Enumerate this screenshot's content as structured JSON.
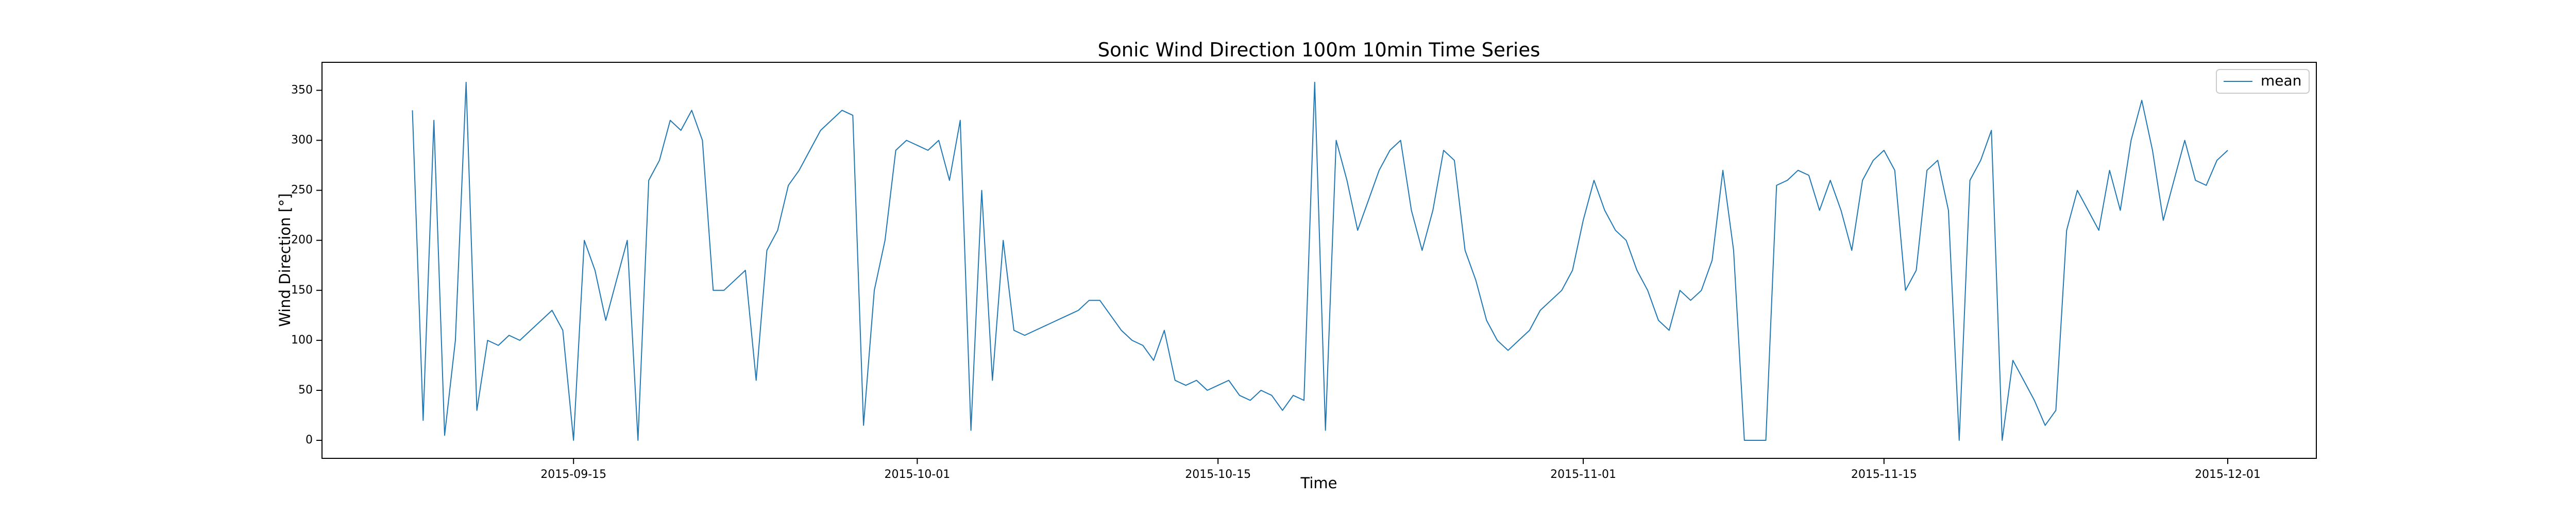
{
  "chart_data": {
    "type": "line",
    "title": "Sonic Wind Direction 100m 10min Time Series",
    "xlabel": "Time",
    "ylabel": "Wind Direction [°]",
    "x": [
      "2015-09-07 12:00",
      "2015-09-08 00:00",
      "2015-09-08 12:00",
      "2015-09-09 00:00",
      "2015-09-09 12:00",
      "2015-09-10 00:00",
      "2015-09-10 12:00",
      "2015-09-11 00:00",
      "2015-09-11 12:00",
      "2015-09-12 00:00",
      "2015-09-12 12:00",
      "2015-09-13 00:00",
      "2015-09-13 12:00",
      "2015-09-14 00:00",
      "2015-09-14 12:00",
      "2015-09-15 00:00",
      "2015-09-15 12:00",
      "2015-09-16 00:00",
      "2015-09-16 12:00",
      "2015-09-17 00:00",
      "2015-09-17 12:00",
      "2015-09-18 00:00",
      "2015-09-18 12:00",
      "2015-09-19 00:00",
      "2015-09-19 12:00",
      "2015-09-20 00:00",
      "2015-09-20 12:00",
      "2015-09-21 00:00",
      "2015-09-21 12:00",
      "2015-09-22 00:00",
      "2015-09-22 12:00",
      "2015-09-23 00:00",
      "2015-09-23 12:00",
      "2015-09-24 00:00",
      "2015-09-24 12:00",
      "2015-09-25 00:00",
      "2015-09-25 12:00",
      "2015-09-26 00:00",
      "2015-09-26 12:00",
      "2015-09-27 00:00",
      "2015-09-27 12:00",
      "2015-09-28 00:00",
      "2015-09-28 12:00",
      "2015-09-29 00:00",
      "2015-09-29 12:00",
      "2015-09-30 00:00",
      "2015-09-30 12:00",
      "2015-10-01 00:00",
      "2015-10-01 12:00",
      "2015-10-02 00:00",
      "2015-10-02 12:00",
      "2015-10-03 00:00",
      "2015-10-03 12:00",
      "2015-10-04 00:00",
      "2015-10-04 12:00",
      "2015-10-05 00:00",
      "2015-10-05 12:00",
      "2015-10-06 00:00",
      "2015-10-06 12:00",
      "2015-10-07 00:00",
      "2015-10-07 12:00",
      "2015-10-08 00:00",
      "2015-10-08 12:00",
      "2015-10-09 00:00",
      "2015-10-09 12:00",
      "2015-10-10 00:00",
      "2015-10-10 12:00",
      "2015-10-11 00:00",
      "2015-10-11 12:00",
      "2015-10-12 00:00",
      "2015-10-12 12:00",
      "2015-10-13 00:00",
      "2015-10-13 12:00",
      "2015-10-14 00:00",
      "2015-10-14 12:00",
      "2015-10-15 00:00",
      "2015-10-15 12:00",
      "2015-10-16 00:00",
      "2015-10-16 12:00",
      "2015-10-17 00:00",
      "2015-10-17 12:00",
      "2015-10-18 00:00",
      "2015-10-18 12:00",
      "2015-10-19 00:00",
      "2015-10-19 12:00",
      "2015-10-20 00:00",
      "2015-10-20 12:00",
      "2015-10-21 00:00",
      "2015-10-21 12:00",
      "2015-10-22 00:00",
      "2015-10-22 12:00",
      "2015-10-23 00:00",
      "2015-10-23 12:00",
      "2015-10-24 00:00",
      "2015-10-24 12:00",
      "2015-10-25 00:00",
      "2015-10-25 12:00",
      "2015-10-26 00:00",
      "2015-10-26 12:00",
      "2015-10-27 00:00",
      "2015-10-27 12:00",
      "2015-10-28 00:00",
      "2015-10-28 12:00",
      "2015-10-29 00:00",
      "2015-10-29 12:00",
      "2015-10-30 00:00",
      "2015-10-30 12:00",
      "2015-10-31 00:00",
      "2015-10-31 12:00",
      "2015-11-01 00:00",
      "2015-11-01 12:00",
      "2015-11-02 00:00",
      "2015-11-02 12:00",
      "2015-11-03 00:00",
      "2015-11-03 12:00",
      "2015-11-04 00:00",
      "2015-11-04 12:00",
      "2015-11-05 00:00",
      "2015-11-05 12:00",
      "2015-11-06 00:00",
      "2015-11-06 12:00",
      "2015-11-07 00:00",
      "2015-11-07 12:00",
      "2015-11-08 00:00",
      "2015-11-08 12:00",
      "2015-11-09 00:00",
      "2015-11-09 12:00",
      "2015-11-10 00:00",
      "2015-11-10 12:00",
      "2015-11-11 00:00",
      "2015-11-11 12:00",
      "2015-11-12 00:00",
      "2015-11-12 12:00",
      "2015-11-13 00:00",
      "2015-11-13 12:00",
      "2015-11-14 00:00",
      "2015-11-14 12:00",
      "2015-11-15 00:00",
      "2015-11-15 12:00",
      "2015-11-16 00:00",
      "2015-11-16 12:00",
      "2015-11-17 00:00",
      "2015-11-17 12:00",
      "2015-11-18 00:00",
      "2015-11-18 12:00",
      "2015-11-19 00:00",
      "2015-11-19 12:00",
      "2015-11-20 00:00",
      "2015-11-20 12:00",
      "2015-11-21 00:00",
      "2015-11-21 12:00",
      "2015-11-22 00:00",
      "2015-11-22 12:00",
      "2015-11-23 00:00",
      "2015-11-23 12:00",
      "2015-11-24 00:00",
      "2015-11-24 12:00",
      "2015-11-25 00:00",
      "2015-11-25 12:00",
      "2015-11-26 00:00",
      "2015-11-26 12:00",
      "2015-11-27 00:00",
      "2015-11-27 12:00",
      "2015-11-28 00:00",
      "2015-11-28 12:00",
      "2015-11-29 00:00",
      "2015-11-29 12:00",
      "2015-11-30 00:00",
      "2015-11-30 12:00",
      "2015-12-01 00:00"
    ],
    "series": [
      {
        "name": "mean",
        "color": "#1f77b4",
        "values": [
          330,
          20,
          320,
          5,
          100,
          358,
          30,
          100,
          95,
          105,
          100,
          110,
          120,
          130,
          110,
          0,
          200,
          170,
          120,
          160,
          200,
          0,
          260,
          280,
          320,
          310,
          330,
          300,
          150,
          150,
          160,
          170,
          60,
          190,
          210,
          255,
          270,
          290,
          310,
          320,
          330,
          325,
          15,
          150,
          200,
          290,
          300,
          295,
          290,
          300,
          260,
          320,
          10,
          250,
          60,
          200,
          110,
          105,
          110,
          115,
          120,
          125,
          130,
          140,
          140,
          125,
          110,
          100,
          95,
          80,
          110,
          60,
          55,
          60,
          50,
          55,
          60,
          45,
          40,
          50,
          45,
          30,
          45,
          40,
          358,
          10,
          300,
          260,
          210,
          240,
          270,
          290,
          300,
          230,
          190,
          230,
          290,
          280,
          190,
          160,
          120,
          100,
          90,
          100,
          110,
          130,
          140,
          150,
          170,
          220,
          260,
          230,
          210,
          200,
          170,
          150,
          120,
          110,
          150,
          140,
          150,
          180,
          270,
          190,
          0,
          0,
          0,
          255,
          260,
          270,
          265,
          230,
          260,
          230,
          190,
          260,
          280,
          290,
          270,
          150,
          170,
          270,
          280,
          230,
          0,
          260,
          280,
          310,
          0,
          80,
          60,
          40,
          15,
          30,
          210,
          250,
          230,
          210,
          270,
          230,
          300,
          340,
          290,
          220,
          260,
          300,
          260,
          255,
          280,
          290
        ]
      }
    ],
    "xlim": [
      "2015-09-03 07:00",
      "2015-12-05 03:00"
    ],
    "xticks": [
      "2015-09-15",
      "2015-10-01",
      "2015-10-15",
      "2015-11-01",
      "2015-11-15",
      "2015-12-01"
    ],
    "ylim": [
      -18,
      378
    ],
    "yticks": [
      0,
      50,
      100,
      150,
      200,
      250,
      300,
      350
    ],
    "grid": false,
    "legend": "upper right"
  }
}
